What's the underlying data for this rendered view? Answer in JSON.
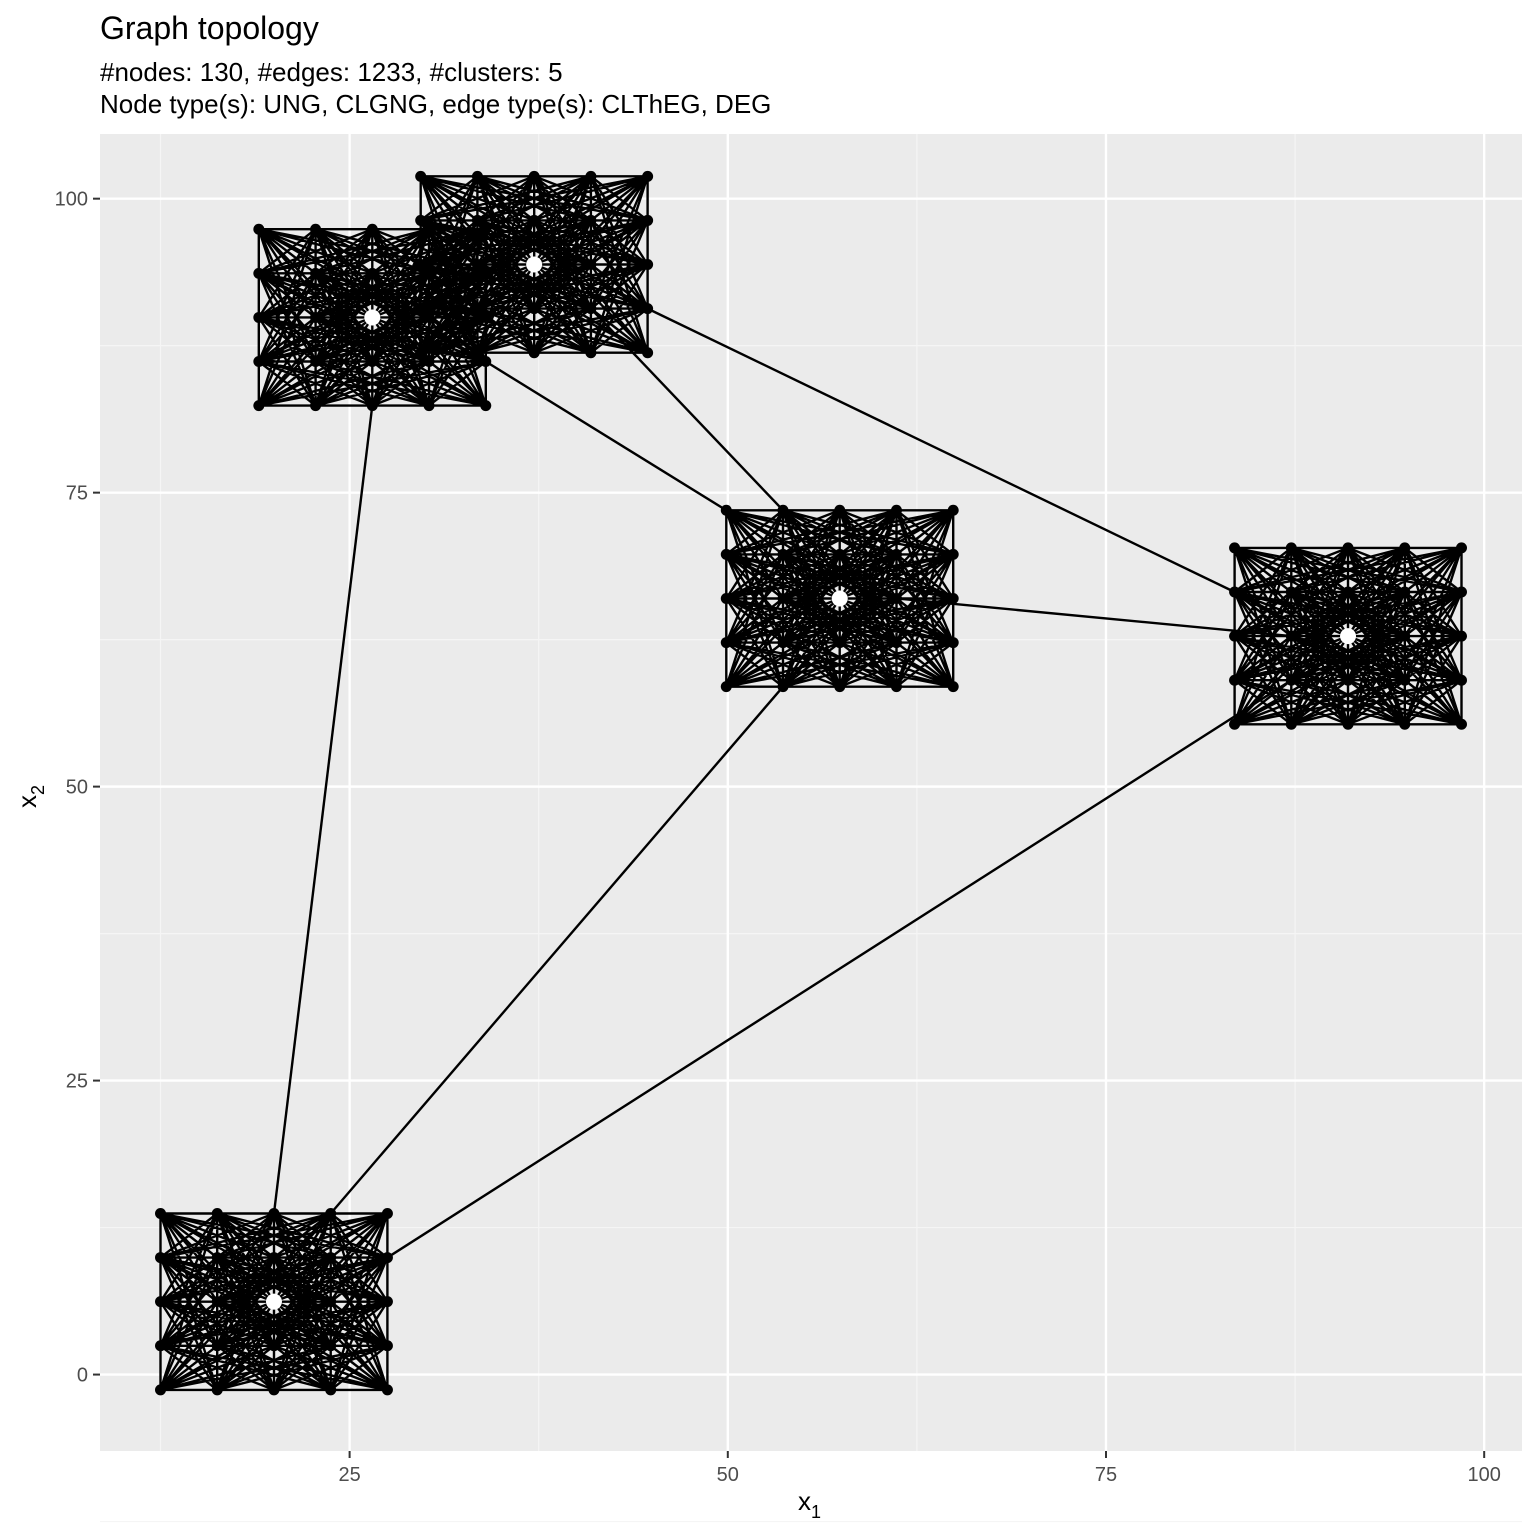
{
  "chart_data": {
    "type": "scatter",
    "title": "Graph topology",
    "subtitle_line1": "#nodes: 130, #edges: 1233, #clusters: 5",
    "subtitle_line2": "Node type(s): UNG, CLGNG, edge type(s): CLThEG, DEG",
    "xlabel": "x",
    "xlabel_sub": "1",
    "ylabel": "x",
    "ylabel_sub": "2",
    "xlim": [
      8.5,
      102.5
    ],
    "ylim": [
      -6.5,
      105.5
    ],
    "x_ticks": [
      25,
      50,
      75,
      100
    ],
    "y_ticks": [
      0,
      25,
      50,
      75,
      100
    ],
    "x_tick_labels": [
      "25",
      "50",
      "75",
      "100"
    ],
    "y_tick_labels": [
      "0",
      "25",
      "50",
      "75",
      "100"
    ],
    "grid": true,
    "colors": {
      "panel_background": "#ebebeb",
      "grid_major": "#ffffff",
      "grid_minor": "#f5f5f5",
      "nodes": "#000000",
      "edges": "#000000",
      "cluster_center": "#ffffff",
      "tick_text": "#4d4d4d"
    },
    "clusters": [
      {
        "center": [
          20.0,
          6.2
        ],
        "x": [
          12.5,
          16.25,
          20.0,
          23.75,
          27.5
        ],
        "y": [
          -1.3,
          2.45,
          6.2,
          9.95,
          13.7
        ]
      },
      {
        "center": [
          26.5,
          89.9
        ],
        "x": [
          19.0,
          22.75,
          26.5,
          30.25,
          34.0
        ],
        "y": [
          82.4,
          86.15,
          89.9,
          93.65,
          97.4
        ]
      },
      {
        "center": [
          37.2,
          94.4
        ],
        "x": [
          29.7,
          33.45,
          37.2,
          40.95,
          44.7
        ],
        "y": [
          86.9,
          90.65,
          94.4,
          98.15,
          101.9
        ]
      },
      {
        "center": [
          57.4,
          66.0
        ],
        "x": [
          49.9,
          53.65,
          57.4,
          61.15,
          64.9
        ],
        "y": [
          58.5,
          62.25,
          66.0,
          69.75,
          73.5
        ]
      },
      {
        "center": [
          91.0,
          62.8
        ],
        "x": [
          83.5,
          87.25,
          91.0,
          94.75,
          98.5
        ],
        "y": [
          55.3,
          59.05,
          62.8,
          66.55,
          70.3
        ]
      }
    ],
    "inter_cluster_edges": [
      {
        "from": [
          20.0,
          13.7
        ],
        "to": [
          26.5,
          82.4
        ]
      },
      {
        "from": [
          23.75,
          13.7
        ],
        "to": [
          53.65,
          58.5
        ]
      },
      {
        "from": [
          27.5,
          9.95
        ],
        "to": [
          87.25,
          59.05
        ]
      },
      {
        "from": [
          34.0,
          86.15
        ],
        "to": [
          49.9,
          73.5
        ]
      },
      {
        "from": [
          40.95,
          90.65
        ],
        "to": [
          53.65,
          73.5
        ]
      },
      {
        "from": [
          44.7,
          90.65
        ],
        "to": [
          83.5,
          66.55
        ]
      },
      {
        "from": [
          61.15,
          66.0
        ],
        "to": [
          87.25,
          62.8
        ]
      }
    ]
  }
}
